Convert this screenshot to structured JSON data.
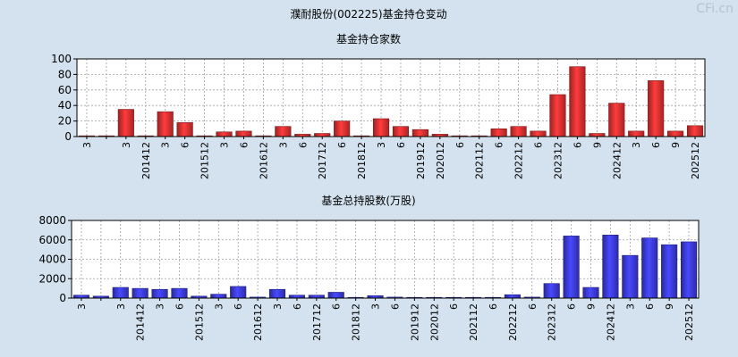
{
  "page_title": "濮耐股份(002225)基金持仓变动",
  "watermark": "CFi.cn",
  "chart_data": [
    {
      "type": "bar",
      "title": "基金持仓家数",
      "xlabel": "",
      "ylabel": "",
      "ylim": [
        0,
        100
      ],
      "yticks": [
        0,
        20,
        40,
        60,
        80,
        100
      ],
      "bar_color": "#e03030",
      "categories": [
        "3",
        "",
        "3",
        "201412",
        "3",
        "6",
        "201512",
        "3",
        "6",
        "201612",
        "3",
        "6",
        "201712",
        "6",
        "201812",
        "3",
        "6",
        "201912",
        "202012",
        "6",
        "202112",
        "6",
        "202212",
        "6",
        "202312",
        "6",
        "9",
        "202412",
        "3",
        "6",
        "9",
        "202512"
      ],
      "values": [
        1,
        1,
        35,
        1,
        32,
        18,
        1,
        6,
        7,
        1,
        13,
        3,
        4,
        20,
        1,
        23,
        13,
        9,
        3,
        1,
        1,
        10,
        13,
        7,
        54,
        90,
        4,
        43,
        7,
        72,
        7,
        14
      ]
    },
    {
      "type": "bar",
      "title": "基金总持股数(万股)",
      "xlabel": "",
      "ylabel": "",
      "ylim": [
        0,
        8000
      ],
      "yticks": [
        0,
        2000,
        4000,
        6000,
        8000
      ],
      "bar_color": "#3a3ae0",
      "categories": [
        "3",
        "",
        "3",
        "201412",
        "3",
        "6",
        "201512",
        "3",
        "6",
        "201612",
        "3",
        "6",
        "201712",
        "6",
        "201812",
        "3",
        "6",
        "201912",
        "202012",
        "6",
        "202112",
        "6",
        "202212",
        "6",
        "202312",
        "6",
        "9",
        "202412",
        "3",
        "6",
        "9",
        "202512"
      ],
      "values": [
        300,
        200,
        1100,
        1000,
        900,
        1000,
        200,
        400,
        1200,
        100,
        900,
        300,
        300,
        600,
        50,
        250,
        100,
        50,
        50,
        50,
        50,
        50,
        350,
        100,
        1500,
        6400,
        1100,
        6500,
        4400,
        6200,
        5500,
        5800
      ]
    }
  ]
}
